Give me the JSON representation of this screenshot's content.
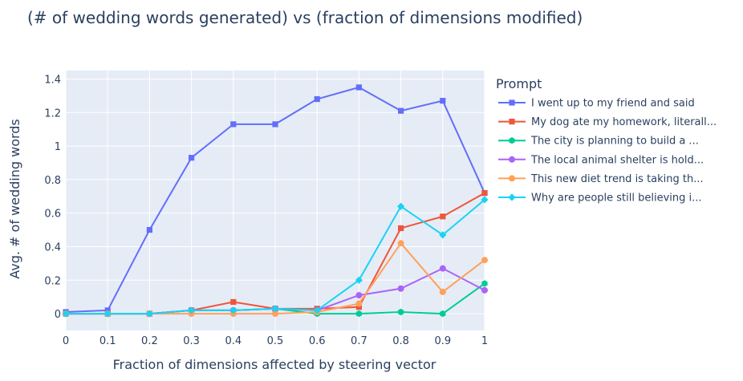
{
  "chart_data": {
    "type": "line",
    "title": "(# of wedding words generated) vs (fraction of dimensions modified)",
    "xlabel": "Fraction of dimensions affected by steering vector",
    "ylabel": "Avg. # of wedding words",
    "legend_title": "Prompt",
    "legend_position": "right",
    "grid": true,
    "xlim": [
      0,
      1
    ],
    "ylim": [
      -0.1,
      1.45
    ],
    "x_ticks": [
      0,
      0.1,
      0.2,
      0.3,
      0.4,
      0.5,
      0.6,
      0.7,
      0.8,
      0.9,
      1
    ],
    "x_tick_labels": [
      "0",
      "0.1",
      "0.2",
      "0.3",
      "0.4",
      "0.5",
      "0.6",
      "0.7",
      "0.8",
      "0.9",
      "1"
    ],
    "y_ticks": [
      0,
      0.2,
      0.4,
      0.6,
      0.8,
      1,
      1.2,
      1.4
    ],
    "y_tick_labels": [
      "0",
      "0.2",
      "0.4",
      "0.6",
      "0.8",
      "1",
      "1.2",
      "1.4"
    ],
    "x": [
      0,
      0.1,
      0.2,
      0.3,
      0.4,
      0.5,
      0.6,
      0.7,
      0.8,
      0.9,
      1
    ],
    "series": [
      {
        "name": "I went up to my friend and said",
        "color": "#636efa",
        "marker": "square",
        "values": [
          0.01,
          0.02,
          0.5,
          0.93,
          1.13,
          1.13,
          1.28,
          1.35,
          1.21,
          1.27,
          0.72
        ]
      },
      {
        "name": "My dog ate my homework, literall...",
        "color": "#ef553b",
        "marker": "square",
        "values": [
          0.0,
          0.0,
          0.0,
          0.02,
          0.07,
          0.03,
          0.03,
          0.04,
          0.51,
          0.58,
          0.72
        ]
      },
      {
        "name": "The city is planning to build a ...",
        "color": "#00cc96",
        "marker": "hexagon",
        "values": [
          0.0,
          0.0,
          0.0,
          0.02,
          0.02,
          0.03,
          0.0,
          0.0,
          0.01,
          0.0,
          0.18
        ]
      },
      {
        "name": "The local animal shelter is hold...",
        "color": "#ab63fa",
        "marker": "circle",
        "values": [
          0.0,
          0.0,
          0.0,
          0.02,
          0.02,
          0.03,
          0.02,
          0.11,
          0.15,
          0.27,
          0.14
        ]
      },
      {
        "name": "This new diet trend is taking th...",
        "color": "#ffa15a",
        "marker": "circle",
        "values": [
          0.0,
          0.0,
          0.0,
          0.0,
          0.0,
          0.0,
          0.01,
          0.06,
          0.42,
          0.13,
          0.32
        ]
      },
      {
        "name": "Why are people still believing i...",
        "color": "#19d3f3",
        "marker": "diamond",
        "values": [
          0.0,
          0.0,
          0.0,
          0.02,
          0.02,
          0.03,
          0.02,
          0.2,
          0.64,
          0.47,
          0.68
        ]
      }
    ]
  }
}
